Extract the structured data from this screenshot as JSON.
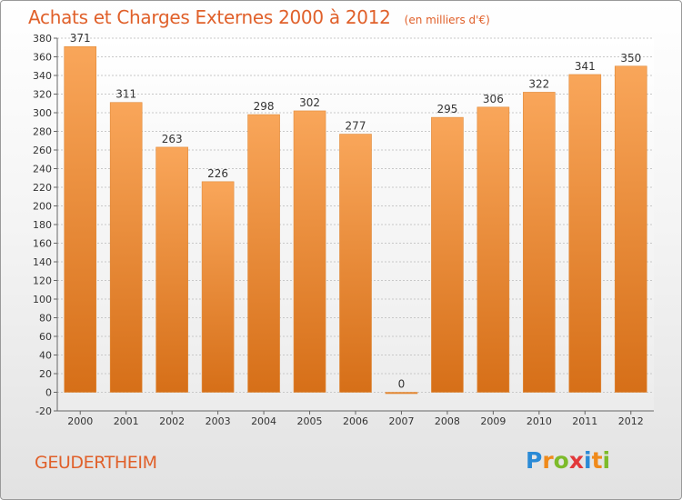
{
  "header": {
    "title": "Achats et Charges Externes 2000 à 2012",
    "subtitle": "(en milliers d'€)"
  },
  "footer": {
    "commune": "GEUDERTHEIM",
    "logo_letters": [
      "P",
      "r",
      "o",
      "x",
      "i",
      "t",
      "i"
    ]
  },
  "colors": {
    "title": "#e0602a",
    "bar_light": "#f9a65a",
    "bar_dark": "#d9741c",
    "grid": "#c8c8c8"
  },
  "chart_data": {
    "type": "bar",
    "categories": [
      "2000",
      "2001",
      "2002",
      "2003",
      "2004",
      "2005",
      "2006",
      "2007",
      "2008",
      "2009",
      "2010",
      "2011",
      "2012"
    ],
    "values": [
      371,
      311,
      263,
      226,
      298,
      302,
      277,
      0,
      295,
      306,
      322,
      341,
      350
    ],
    "value_labels": [
      "371",
      "311",
      "263",
      "226",
      "298",
      "302",
      "277",
      "0",
      "295",
      "306",
      "322",
      "341",
      "350"
    ],
    "ylim": [
      -20,
      380
    ],
    "yticks": [
      -20,
      0,
      20,
      40,
      60,
      80,
      100,
      120,
      140,
      160,
      180,
      200,
      220,
      240,
      260,
      280,
      300,
      320,
      340,
      360,
      380
    ],
    "ytick_labels": [
      "-20",
      "0",
      "20",
      "40",
      "60",
      "80",
      "100",
      "120",
      "140",
      "160",
      "180",
      "200",
      "220",
      "240",
      "260",
      "280",
      "300",
      "320",
      "340",
      "360",
      "380"
    ],
    "grid": true,
    "legend": "none"
  }
}
